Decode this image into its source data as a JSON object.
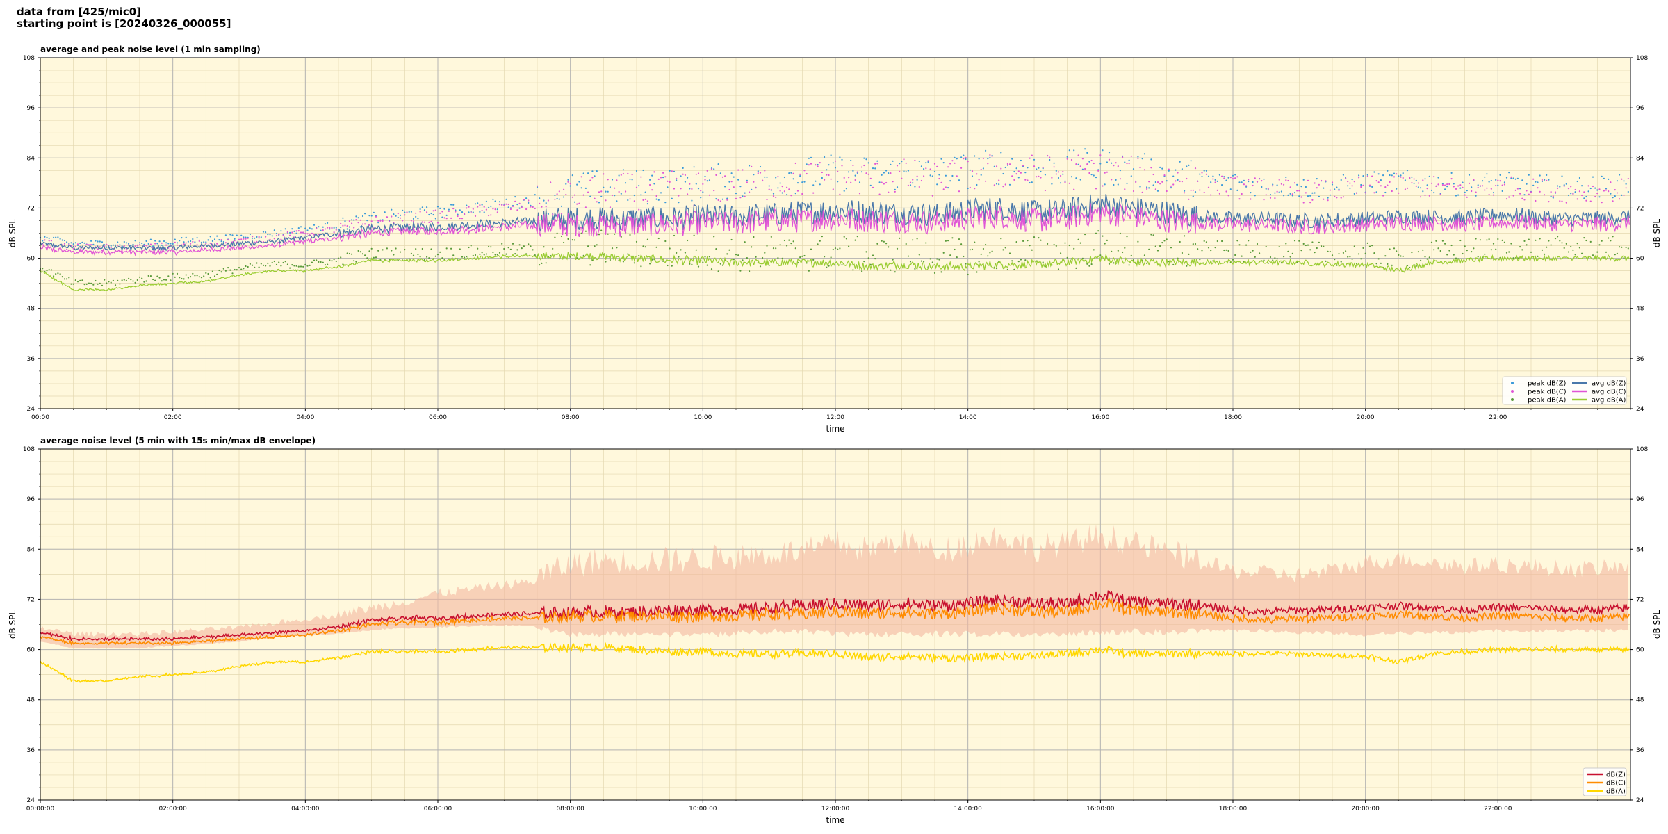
{
  "header": {
    "line1": "data from [425/mic0]",
    "line2": "starting point is [20240326_000055]"
  },
  "colors": {
    "plot_bg": "#fff8dc",
    "grid_major": "#b4b4b4",
    "grid_minor": "#e4d8b0",
    "dBZ": "#4a78aa",
    "dBZ_peak": "#3a9ad9",
    "dBC": "#e055d6",
    "dBA": "#9acd32",
    "dBA_peak": "#5a9a3a",
    "env_Z": "#c8102e",
    "env_C": "#ff8c00",
    "env_A": "#ffd700",
    "envelope_fill": "#f4b8a0"
  },
  "chart_data": [
    {
      "type": "line",
      "title": "average and peak noise level (1 min sampling)",
      "xlabel": "time",
      "ylabel": "dB SPL",
      "ylim": [
        24,
        108
      ],
      "xlim_hours": [
        0,
        24
      ],
      "yticks": [
        24,
        36,
        48,
        60,
        72,
        84,
        96,
        108
      ],
      "xticks": [
        "00:00",
        "02:00",
        "04:00",
        "06:00",
        "08:00",
        "10:00",
        "12:00",
        "14:00",
        "16:00",
        "18:00",
        "20:00",
        "22:00"
      ],
      "grid": true,
      "legend_position": "lower-right",
      "x_hours": [
        0,
        0.5,
        1,
        1.5,
        2,
        2.5,
        3,
        3.5,
        4,
        4.5,
        5,
        5.5,
        6,
        6.5,
        7,
        7.5,
        8,
        8.5,
        9,
        9.5,
        10,
        10.5,
        11,
        11.5,
        12,
        12.5,
        13,
        13.5,
        14,
        14.5,
        15,
        15.5,
        16,
        16.5,
        17,
        17.5,
        18,
        18.5,
        19,
        19.5,
        20,
        20.5,
        21,
        21.5,
        22,
        22.5,
        23,
        23.5,
        24
      ],
      "series": [
        {
          "name": "avg dB(Z)",
          "style": "line",
          "color": "#4a78aa",
          "values": [
            63.5,
            62.5,
            62.5,
            62.5,
            62.5,
            63,
            63.5,
            64,
            65,
            66,
            67,
            67.5,
            67.5,
            68,
            68.5,
            69,
            69.5,
            69.5,
            69.5,
            69.5,
            70,
            70,
            70.5,
            71,
            71.5,
            71,
            71,
            70.5,
            71.5,
            72,
            71,
            71.5,
            73,
            72,
            71,
            70,
            69.5,
            69.5,
            69,
            69,
            69.5,
            70,
            70,
            69.5,
            70.5,
            70,
            69.5,
            69.5,
            70
          ]
        },
        {
          "name": "avg dB(C)",
          "style": "line",
          "color": "#e055d6",
          "values": [
            62.5,
            61.5,
            61.5,
            61.5,
            61.5,
            62,
            62.5,
            63,
            64,
            65,
            66,
            66.5,
            66.5,
            67,
            67.5,
            68,
            68,
            68,
            68,
            68,
            68.5,
            68.5,
            69,
            69,
            69.5,
            69,
            69,
            68.5,
            69.5,
            70,
            69,
            69.5,
            71,
            70,
            69,
            68.5,
            68,
            68,
            67.5,
            67.5,
            68,
            68.5,
            68.5,
            68,
            68.5,
            68.5,
            68,
            68,
            68.5
          ]
        },
        {
          "name": "avg dB(A)",
          "style": "line",
          "color": "#9acd32",
          "values": [
            57,
            52.5,
            52.5,
            53.5,
            54,
            54.5,
            56,
            57,
            57,
            58,
            59.5,
            59.5,
            59.5,
            60,
            60.5,
            60.5,
            60.5,
            60.5,
            60,
            59.5,
            59.5,
            59,
            59,
            59,
            59,
            58,
            58.5,
            58,
            58,
            58.5,
            58.5,
            59,
            60,
            59,
            59,
            59,
            59,
            59,
            59,
            58.5,
            58.5,
            57,
            59,
            59.5,
            60,
            60,
            60,
            60,
            60
          ]
        },
        {
          "name": "peak dB(Z)",
          "style": "scatter",
          "color": "#3a9ad9",
          "values": [
            65,
            63.5,
            63.5,
            63.5,
            64,
            64.5,
            65,
            66,
            67,
            68,
            69.5,
            70.5,
            71,
            72,
            73,
            74,
            76,
            77,
            77,
            77.5,
            78,
            78.5,
            79,
            80,
            80.5,
            80,
            80.5,
            80,
            81,
            82,
            81.5,
            81.5,
            82,
            81,
            80,
            79,
            78,
            77.5,
            77,
            77,
            78,
            78.5,
            78,
            77.5,
            78,
            77.5,
            77,
            77,
            77.5
          ]
        },
        {
          "name": "peak dB(C)",
          "style": "scatter",
          "color": "#e055d6",
          "values": [
            64,
            62.5,
            62.5,
            62.5,
            63,
            63.5,
            64,
            65,
            66,
            67,
            68.5,
            69.5,
            70,
            71,
            72,
            73,
            75,
            76,
            76,
            76.5,
            77,
            77.5,
            78,
            79,
            79.5,
            79,
            79.5,
            79,
            80,
            81,
            80.5,
            80.5,
            81,
            80,
            79,
            78,
            77,
            76.5,
            76,
            76,
            77,
            77.5,
            77,
            76.5,
            77,
            76.5,
            76,
            76,
            76.5
          ]
        },
        {
          "name": "peak dB(A)",
          "style": "scatter",
          "color": "#5a9a3a",
          "values": [
            58,
            54,
            54,
            55,
            55.5,
            56,
            57.5,
            58.5,
            58.5,
            59.5,
            61,
            61,
            61,
            61.5,
            62,
            62,
            62.5,
            62.5,
            62,
            61.5,
            61.5,
            61,
            61,
            61,
            61.5,
            60.5,
            61,
            60.5,
            60.5,
            61,
            61,
            61.5,
            62.5,
            61.5,
            61.5,
            61.5,
            61.5,
            61.5,
            61.5,
            61,
            61,
            59.5,
            61.5,
            62,
            62.5,
            62.5,
            62.5,
            62.5,
            62.5
          ]
        }
      ],
      "legend": [
        "peak dB(Z)",
        "peak dB(C)",
        "peak dB(A)",
        "avg dB(Z)",
        "avg dB(C)",
        "avg dB(A)"
      ]
    },
    {
      "type": "line",
      "title": "average noise level (5 min with 15s min/max dB envelope)",
      "xlabel": "time",
      "ylabel": "dB SPL",
      "ylim": [
        24,
        108
      ],
      "xlim_hours": [
        0,
        24
      ],
      "yticks": [
        24,
        36,
        48,
        60,
        72,
        84,
        96,
        108
      ],
      "xticks": [
        "00:00:00",
        "02:00:00",
        "04:00:00",
        "06:00:00",
        "08:00:00",
        "10:00:00",
        "12:00:00",
        "14:00:00",
        "16:00:00",
        "18:00:00",
        "20:00:00",
        "22:00:00"
      ],
      "grid": true,
      "legend_position": "lower-right",
      "x_hours": [
        0,
        0.5,
        1,
        1.5,
        2,
        2.5,
        3,
        3.5,
        4,
        4.5,
        5,
        5.5,
        6,
        6.5,
        7,
        7.5,
        8,
        8.5,
        9,
        9.5,
        10,
        10.5,
        11,
        11.5,
        12,
        12.5,
        13,
        13.5,
        14,
        14.5,
        15,
        15.5,
        16,
        16.5,
        17,
        17.5,
        18,
        18.5,
        19,
        19.5,
        20,
        20.5,
        21,
        21.5,
        22,
        22.5,
        23,
        23.5,
        24
      ],
      "envelope_max": [
        65,
        63.5,
        63.5,
        63.5,
        64,
        64.5,
        65,
        66,
        67,
        68,
        69.5,
        71,
        73,
        74,
        75,
        76,
        79,
        80,
        80,
        80,
        80.5,
        81,
        81.5,
        82,
        84,
        82.5,
        85,
        82,
        84,
        86,
        83,
        84,
        86,
        84,
        82,
        80,
        78,
        77.5,
        77,
        78,
        80,
        81,
        80,
        79,
        79.5,
        79,
        78.5,
        78.5,
        79
      ],
      "envelope_min": [
        62,
        60.5,
        60.5,
        60.5,
        61,
        61.5,
        62,
        63,
        63.5,
        64,
        65,
        65.5,
        65.5,
        66,
        66,
        66,
        64.5,
        64.5,
        64.5,
        64.5,
        64.5,
        64.5,
        65,
        65,
        64.5,
        64.5,
        64.5,
        64.5,
        64.5,
        64.5,
        64.5,
        64.5,
        65,
        65,
        65,
        65,
        65,
        65,
        64.5,
        64.5,
        64,
        64.5,
        64.5,
        64.5,
        65,
        65,
        65,
        65,
        65
      ],
      "series": [
        {
          "name": "dB(Z)",
          "color": "#c8102e",
          "values": [
            64,
            62.5,
            62.5,
            62.5,
            62.5,
            63,
            63.5,
            64,
            64.5,
            65.5,
            67,
            67.5,
            67.5,
            68,
            68.5,
            68.5,
            69,
            69,
            69,
            69.5,
            69.5,
            69.5,
            70,
            70.5,
            71,
            70.5,
            71,
            70.5,
            71,
            72,
            71,
            71,
            73,
            71.5,
            71,
            70.5,
            69.5,
            69,
            69.5,
            69.5,
            70,
            70.5,
            70,
            69.5,
            70,
            70,
            69.5,
            69.5,
            70
          ]
        },
        {
          "name": "dB(C)",
          "color": "#ff8c00",
          "values": [
            63,
            61.5,
            61.5,
            61.5,
            61.5,
            62,
            62.5,
            63,
            63.5,
            64.5,
            66,
            66.5,
            66.5,
            67,
            67.5,
            67.5,
            68,
            68,
            68,
            68,
            68,
            68,
            68.5,
            68.5,
            69,
            68.5,
            69,
            68.5,
            69,
            70,
            69,
            69,
            71,
            69.5,
            69,
            68.5,
            67.5,
            67,
            67.5,
            67.5,
            68,
            68.5,
            68,
            67.5,
            68,
            68,
            67.5,
            67.5,
            68
          ]
        },
        {
          "name": "dB(A)",
          "color": "#ffd700",
          "values": [
            57,
            52.5,
            52.5,
            53.5,
            54,
            54.5,
            56,
            57,
            57,
            58,
            59.5,
            59.5,
            59.5,
            60,
            60.5,
            60.5,
            60.5,
            60.5,
            60,
            59.5,
            59.5,
            59,
            59,
            59,
            59,
            58,
            58.5,
            58,
            58,
            58.5,
            58.5,
            59,
            60,
            59,
            59,
            59,
            59,
            59,
            59,
            58.5,
            58.5,
            57,
            59,
            59.5,
            60,
            60,
            60,
            60,
            60
          ]
        }
      ],
      "legend": [
        "dB(Z)",
        "dB(C)",
        "dB(A)"
      ]
    }
  ]
}
